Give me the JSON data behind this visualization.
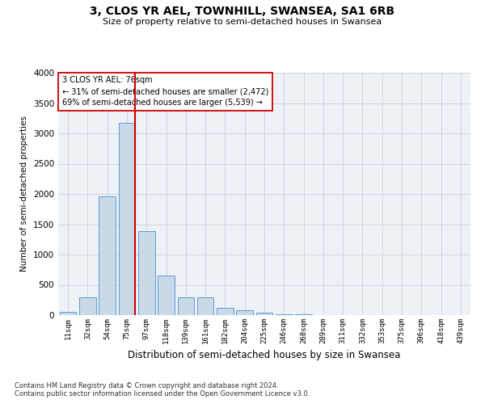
{
  "title": "3, CLOS YR AEL, TOWNHILL, SWANSEA, SA1 6RB",
  "subtitle": "Size of property relative to semi-detached houses in Swansea",
  "xlabel": "Distribution of semi-detached houses by size in Swansea",
  "ylabel": "Number of semi-detached properties",
  "footnote1": "Contains HM Land Registry data © Crown copyright and database right 2024.",
  "footnote2": "Contains public sector information licensed under the Open Government Licence v3.0.",
  "categories": [
    "11sqm",
    "32sqm",
    "54sqm",
    "75sqm",
    "97sqm",
    "118sqm",
    "139sqm",
    "161sqm",
    "182sqm",
    "204sqm",
    "225sqm",
    "246sqm",
    "268sqm",
    "289sqm",
    "311sqm",
    "332sqm",
    "353sqm",
    "375sqm",
    "396sqm",
    "418sqm",
    "439sqm"
  ],
  "values": [
    50,
    300,
    1960,
    3180,
    1390,
    650,
    290,
    290,
    120,
    75,
    40,
    20,
    10,
    5,
    2,
    2,
    1,
    1,
    1,
    1,
    0
  ],
  "bar_color": "#c9d9e8",
  "bar_edge_color": "#5b9bd5",
  "highlight_index": 3,
  "highlight_line_color": "#cc0000",
  "ylim": [
    0,
    4000
  ],
  "yticks": [
    0,
    500,
    1000,
    1500,
    2000,
    2500,
    3000,
    3500,
    4000
  ],
  "annotation_label": "3 CLOS YR AEL: 76sqm",
  "annotation_line1": "← 31% of semi-detached houses are smaller (2,472)",
  "annotation_line2": "69% of semi-detached houses are larger (5,539) →",
  "bg_color": "#eef2f7",
  "grid_color": "#c8d0da"
}
